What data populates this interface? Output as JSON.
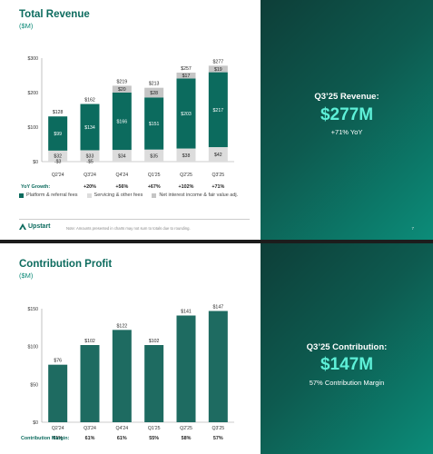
{
  "slide1": {
    "title": "Total Revenue",
    "subtitle": "($M)",
    "highlight": {
      "label": "Q3’25 Revenue:",
      "value": "$277M",
      "sub": "+71% YoY"
    },
    "page_number": "7",
    "logo_text": "Upstart",
    "footnote": "Note: Amounts presented in charts may not sum to totals due to rounding.",
    "colors": {
      "platform": "#0c6b5e",
      "servicing": "#dcdcdc",
      "net_interest": "#c5c5c5"
    }
  },
  "slide2": {
    "title": "Contribution Profit",
    "subtitle": "($M)",
    "highlight": {
      "label": "Q3’25 Contribution:",
      "value": "$147M",
      "sub": "57% Contribution Margin"
    },
    "colors": {
      "bar": "#1e6b61"
    }
  },
  "chart_data": [
    {
      "type": "bar",
      "stacked": true,
      "categories": [
        "Q2'24",
        "Q3'24",
        "Q4'24",
        "Q1'25",
        "Q2'25",
        "Q3'25"
      ],
      "series": [
        {
          "name": "Platform & referral fees",
          "values": [
            99,
            134,
            166,
            151,
            203,
            217
          ]
        },
        {
          "name": "Servicing & other fees",
          "values": [
            32,
            33,
            34,
            35,
            38,
            42
          ]
        },
        {
          "name": "Net interest income & fair value adj.",
          "values": [
            -3,
            -5,
            20,
            28,
            17,
            19
          ]
        }
      ],
      "segment_labels": [
        [
          "$99",
          "$32",
          "-$3"
        ],
        [
          "$134",
          "$33",
          "-$5"
        ],
        [
          "$166",
          "$34",
          "$20"
        ],
        [
          "$151",
          "$35",
          "$28"
        ],
        [
          "$203",
          "$38",
          "$17"
        ],
        [
          "$217",
          "$42",
          "$19"
        ]
      ],
      "totals": [
        "$128",
        "$162",
        "$219",
        "$213",
        "$257",
        "$277"
      ],
      "growth_row_label": "YoY Growth:",
      "growth": [
        "",
        "+20%",
        "+56%",
        "+67%",
        "+102%",
        "+71%"
      ],
      "ylim": [
        0,
        300
      ],
      "yticks": [
        0,
        100,
        200,
        300
      ],
      "ytick_labels": [
        "$0",
        "$100",
        "$200",
        "$300"
      ],
      "legend_position": "bottom-left"
    },
    {
      "type": "bar",
      "categories": [
        "Q2'24",
        "Q3'24",
        "Q4'24",
        "Q1'25",
        "Q2'25",
        "Q3'25"
      ],
      "values": [
        76,
        102,
        122,
        102,
        141,
        147
      ],
      "value_labels": [
        "$76",
        "$102",
        "$122",
        "$102",
        "$141",
        "$147"
      ],
      "margin_row_label": "Contribution Margin:",
      "margins": [
        "61%",
        "61%",
        "61%",
        "55%",
        "58%",
        "57%"
      ],
      "ylim": [
        0,
        150
      ],
      "yticks": [
        0,
        50,
        100,
        150
      ],
      "ytick_labels": [
        "$0",
        "$50",
        "$100",
        "$150"
      ]
    }
  ]
}
